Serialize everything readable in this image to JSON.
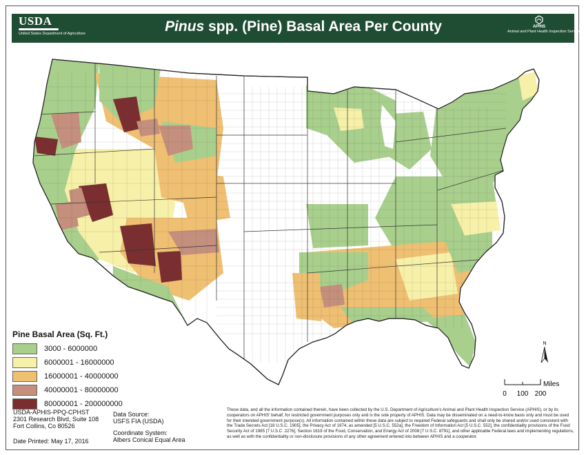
{
  "header": {
    "agency_wordmark": "USDA",
    "agency_name": "United States Department of Agriculture",
    "title_italic": "Pinus",
    "title_rest": " spp. (Pine) Basal Area Per County",
    "aphis_wordmark": "APHIS",
    "aphis_name": "Animal and Plant Health Inspection Service",
    "background_color": "#1f4d33"
  },
  "legend": {
    "title": "Pine Basal Area (Sq. Ft.)",
    "classes": [
      {
        "label": "3000 - 6000000",
        "color": "#a8cf8c"
      },
      {
        "label": "6000001 - 16000000",
        "color": "#f7f0a8"
      },
      {
        "label": "16000001 - 40000000",
        "color": "#efbf72"
      },
      {
        "label": "40000001 - 80000000",
        "color": "#c48f7c"
      },
      {
        "label": "80000001 - 200000000",
        "color": "#7a2e30"
      }
    ],
    "no_data_color": "#ffffff"
  },
  "map": {
    "north_label": "N",
    "scale_unit": "Miles",
    "scale_ticks": [
      "0",
      "100",
      "200"
    ]
  },
  "footer": {
    "office": "USDA-APHIS-PPQ-CPHST",
    "address_line1": "2301 Research Blvd, Suite 108",
    "address_line2": "Fort Collins, Co 80526",
    "date_printed": "Date Printed: May 17, 2016",
    "data_source_label": "Data Source:",
    "data_source_value": "USFS FIA (USDA)",
    "coord_label": "Coordinate System:",
    "coord_value": "Albers Conical Equal Area",
    "disclaimer": "These data, and all the information contained therein, have been collected by the U.S. Department of Agriculture's Animal and Plant Health Inspection Service (APHIS), or by its cooperators on APHIS' behalf, for restricted government purposes only and is the sole property of APHIS. Data may be disseminated on a need-to-know basis only and must be used for their intended government purpose(s). All information contained within these data are subject to required Federal safeguards and shall only be shared and/or used consistent with the Trade Secrets Act [18 U.S.C. 1905], the Privacy Act of 1974, as amended [5 U.S.C. 552a], the Freedom of Information Act [5 U.S.C. 552], the confidentiality provisions of the Food Security Act of 1985 [7 U.S.C. 2276], Section 1619 of the Food, Conservation, and Energy Act of 2008 [7 U.S.C. 8791], and other applicable Federal laws and implementing regulations, as well as with the confidentiality or non-disclosure provisions of any other agreement entered into between APHIS and a cooperator."
  }
}
